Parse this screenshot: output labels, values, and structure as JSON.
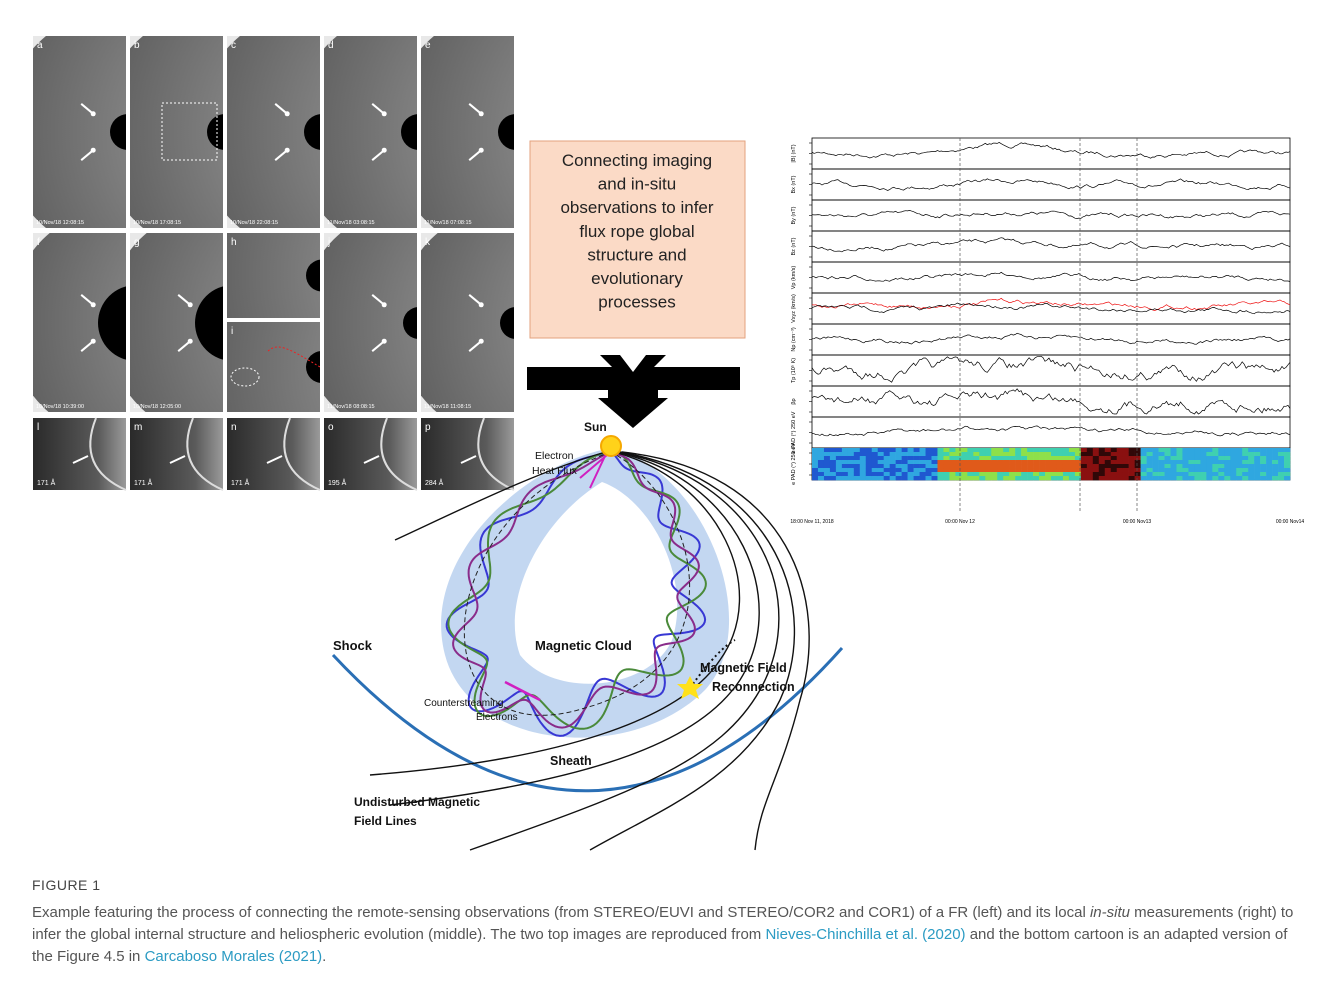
{
  "coronagraph_panels": [
    {
      "letter": "a",
      "time": "10/Nov/18 12:08:15"
    },
    {
      "letter": "b",
      "time": "10/Nov/18 17:08:15"
    },
    {
      "letter": "c",
      "time": "10/Nov/18 22:08:15"
    },
    {
      "letter": "d",
      "time": "11/Nov/18 03:08:15"
    },
    {
      "letter": "e",
      "time": "11/Nov/18 07:08:15"
    },
    {
      "letter": "f",
      "time": "10/Nov/18 10:39:00"
    },
    {
      "letter": "g",
      "time": "10/Nov/18 12:05:00"
    },
    {
      "letter": "h"
    },
    {
      "letter": "i"
    },
    {
      "letter": "j",
      "time": "11/Nov/18 08:08:15"
    },
    {
      "letter": "k",
      "time": "11/Nov/18 11:08:15"
    }
  ],
  "euv_panels": [
    {
      "letter": "l",
      "wavelength": "171 Å"
    },
    {
      "letter": "m",
      "wavelength": "171 Å"
    },
    {
      "letter": "n",
      "wavelength": "171 Å"
    },
    {
      "letter": "o",
      "wavelength": "195 Å"
    },
    {
      "letter": "p",
      "wavelength": "284 Å"
    }
  ],
  "callout": {
    "lines": [
      "Connecting imaging",
      "and in-situ",
      "observations to infer",
      "flux rope global",
      "structure and",
      "evolutionary",
      "processes"
    ]
  },
  "cartoon": {
    "sun": "Sun",
    "heat_flux": [
      "Electron",
      "Heat Flux"
    ],
    "cloud": "Magnetic Cloud",
    "shock": "Shock",
    "reconnection": [
      "Magnetic Field",
      "Reconnection"
    ],
    "counterstreaming": [
      "Counterstreaming",
      "Electrons"
    ],
    "sheath": "Sheath",
    "undisturbed": [
      "Undisturbed Magnetic",
      "Field Lines"
    ]
  },
  "insitu": {
    "ylabels": [
      "|B| (nT)",
      "Bx (nT)",
      "By (nT)",
      "Bz (nT)",
      "Vp (km/s)",
      "Vxyz (km/s)",
      "Np (cm⁻³)",
      "Tp (10⁵ K)",
      "βp",
      "e PAD (°) 250 eV",
      "e PAD (°) 250 eV"
    ],
    "xlabels": [
      "18:00 Nov 11, 2018",
      "00:00 Nov 12",
      "00:00 Nov13",
      "00:00 Nov14"
    ]
  },
  "caption": {
    "label": "FIGURE 1",
    "text1": "Example featuring the process of connecting the remote-sensing observations (from STEREO/EUVI and STEREO/COR2 and COR1) of a FR (left) and its local ",
    "italic": "in-situ",
    "text2": " measurements (right) to infer the global internal structure and heliospheric evolution (middle). The two top images are reproduced from ",
    "link1": "Nieves-Chinchilla et al. (2020)",
    "text3": " and the bottom cartoon is an adapted version of the Figure 4.5 in ",
    "link2": "Carcaboso Morales (2021)",
    "text4": "."
  }
}
